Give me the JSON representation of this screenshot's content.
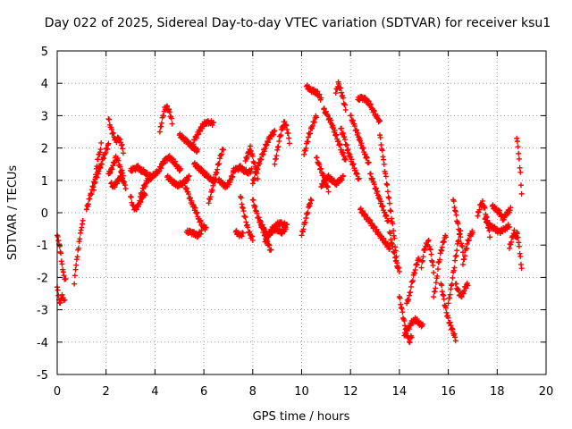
{
  "chart_data": {
    "type": "scatter",
    "title": "Day 022 of 2025, Sidereal Day-to-day VTEC variation (SDTVAR) for receiver ksu1",
    "xlabel": "GPS time / hours",
    "ylabel": "SDTVAR / TECUs",
    "xlim": [
      0,
      20
    ],
    "ylim": [
      -5,
      5
    ],
    "xticks": [
      0,
      2,
      4,
      6,
      8,
      10,
      12,
      14,
      16,
      18,
      20
    ],
    "yticks": [
      -5,
      -4,
      -3,
      -2,
      -1,
      0,
      1,
      2,
      3,
      4,
      5
    ],
    "grid": true,
    "marker": "+",
    "color": "#ff0000",
    "series": [
      {
        "name": "tr01",
        "x": [
          0.0,
          0.05,
          0.1,
          0.15,
          0.2,
          0.25,
          0.3
        ],
        "y": [
          -2.3,
          -2.6,
          -2.85,
          -2.7,
          -2.55,
          -2.6,
          -2.75
        ]
      },
      {
        "name": "tr02",
        "x": [
          0.0,
          0.05,
          0.1,
          0.15,
          0.2,
          0.25,
          0.3,
          0.35
        ],
        "y": [
          -0.7,
          -0.9,
          -1.1,
          -1.3,
          -1.6,
          -1.8,
          -2.0,
          -2.1
        ]
      },
      {
        "name": "tr03",
        "x": [
          0.7,
          0.75,
          0.8,
          0.85,
          0.9,
          0.95,
          1.0,
          1.05
        ],
        "y": [
          -2.2,
          -1.8,
          -1.5,
          -1.2,
          -0.9,
          -0.6,
          -0.4,
          -0.3
        ]
      },
      {
        "name": "tr04",
        "x": [
          1.2,
          1.35,
          1.5,
          1.65,
          1.8,
          1.95,
          2.1
        ],
        "y": [
          0.1,
          0.5,
          0.9,
          1.2,
          1.5,
          1.85,
          2.1
        ]
      },
      {
        "name": "tr05",
        "x": [
          1.5,
          1.55,
          1.6,
          1.65,
          1.7,
          1.75,
          1.8
        ],
        "y": [
          0.7,
          1.0,
          1.3,
          1.6,
          1.8,
          1.9,
          2.1
        ]
      },
      {
        "name": "tr06",
        "x": [
          2.1,
          2.2,
          2.3,
          2.4,
          2.5,
          2.6,
          2.7
        ],
        "y": [
          2.9,
          2.6,
          2.4,
          2.2,
          2.3,
          2.2,
          1.9
        ]
      },
      {
        "name": "tr07",
        "x": [
          2.1,
          2.2,
          2.3,
          2.4,
          2.5,
          2.6,
          2.7
        ],
        "y": [
          1.2,
          1.3,
          1.5,
          1.7,
          1.6,
          1.3,
          1.2
        ]
      },
      {
        "name": "tr08",
        "x": [
          2.2,
          2.3,
          2.4,
          2.5,
          2.6,
          2.7,
          2.8
        ],
        "y": [
          0.9,
          0.8,
          0.9,
          1.0,
          1.1,
          1.0,
          0.8
        ]
      },
      {
        "name": "tr09",
        "x": [
          3.0,
          3.1,
          3.2,
          3.3,
          3.4,
          3.5,
          3.6
        ],
        "y": [
          0.5,
          0.2,
          0.1,
          0.2,
          0.35,
          0.5,
          0.6
        ]
      },
      {
        "name": "tr10",
        "x": [
          3.0,
          3.15,
          3.3,
          3.45,
          3.6,
          3.75,
          3.9
        ],
        "y": [
          1.3,
          1.35,
          1.4,
          1.3,
          1.25,
          1.15,
          1.1
        ]
      },
      {
        "name": "tr11",
        "x": [
          3.4,
          3.55,
          3.7,
          3.85,
          4.0,
          4.15,
          4.3
        ],
        "y": [
          0.5,
          0.8,
          1.0,
          1.1,
          1.2,
          1.3,
          1.5
        ]
      },
      {
        "name": "tr12",
        "x": [
          4.2,
          4.3,
          4.4,
          4.5,
          4.6,
          4.7
        ],
        "y": [
          2.5,
          2.9,
          3.2,
          3.25,
          3.1,
          2.8
        ]
      },
      {
        "name": "tr13",
        "x": [
          4.3,
          4.45,
          4.6,
          4.75,
          4.9,
          5.05
        ],
        "y": [
          1.5,
          1.65,
          1.7,
          1.6,
          1.45,
          1.3
        ]
      },
      {
        "name": "tr14",
        "x": [
          4.5,
          4.65,
          4.8,
          4.95,
          5.1,
          5.25,
          5.4
        ],
        "y": [
          1.1,
          1.0,
          0.9,
          0.85,
          0.9,
          1.0,
          1.1
        ]
      },
      {
        "name": "tr15",
        "x": [
          5.0,
          5.15,
          5.3,
          5.45,
          5.6,
          5.75
        ],
        "y": [
          2.4,
          2.3,
          2.2,
          2.1,
          2.0,
          1.9
        ]
      },
      {
        "name": "tr16",
        "x": [
          5.2,
          5.35,
          5.5,
          5.65,
          5.8,
          5.95,
          6.1
        ],
        "y": [
          0.9,
          0.6,
          0.3,
          0.1,
          -0.2,
          -0.4,
          -0.5
        ]
      },
      {
        "name": "tr17",
        "x": [
          5.3,
          5.45,
          5.6,
          5.75,
          5.9
        ],
        "y": [
          -0.6,
          -0.6,
          -0.65,
          -0.7,
          -0.6
        ]
      },
      {
        "name": "tr18",
        "x": [
          5.5,
          5.65,
          5.8,
          5.95,
          6.1,
          6.25,
          6.4
        ],
        "y": [
          2.0,
          2.3,
          2.5,
          2.7,
          2.8,
          2.8,
          2.75
        ]
      },
      {
        "name": "tr19",
        "x": [
          5.6,
          5.75,
          5.9,
          6.05,
          6.2,
          6.35,
          6.5
        ],
        "y": [
          1.5,
          1.4,
          1.3,
          1.2,
          1.1,
          1.0,
          1.0
        ]
      },
      {
        "name": "tr20",
        "x": [
          6.2,
          6.3,
          6.4,
          6.5,
          6.6,
          6.7,
          6.8
        ],
        "y": [
          0.3,
          0.6,
          0.9,
          1.2,
          1.5,
          1.8,
          2.0
        ]
      },
      {
        "name": "tr21",
        "x": [
          6.6,
          6.75,
          6.9,
          7.05,
          7.2
        ],
        "y": [
          1.0,
          0.9,
          0.8,
          0.95,
          1.2
        ]
      },
      {
        "name": "tr22",
        "x": [
          7.2,
          7.35,
          7.5,
          7.65,
          7.8,
          7.95
        ],
        "y": [
          1.3,
          1.35,
          1.4,
          1.3,
          1.25,
          1.3
        ]
      },
      {
        "name": "tr23",
        "x": [
          7.3,
          7.4,
          7.5,
          7.6
        ],
        "y": [
          -0.6,
          -0.65,
          -0.7,
          -0.65
        ]
      },
      {
        "name": "tr24",
        "x": [
          7.5,
          7.6,
          7.7,
          7.8,
          7.9,
          8.0
        ],
        "y": [
          0.5,
          0.1,
          -0.2,
          -0.5,
          -0.7,
          -0.8
        ]
      },
      {
        "name": "tr25",
        "x": [
          7.7,
          7.8,
          7.9,
          8.0,
          8.1,
          8.2
        ],
        "y": [
          1.6,
          1.8,
          2.0,
          1.7,
          1.4,
          1.1
        ]
      },
      {
        "name": "tr26",
        "x": [
          8.0,
          8.15,
          8.3,
          8.45,
          8.6,
          8.75
        ],
        "y": [
          0.4,
          0.0,
          -0.3,
          -0.6,
          -0.9,
          -1.2
        ]
      },
      {
        "name": "tr27",
        "x": [
          8.0,
          8.15,
          8.3,
          8.45,
          8.6,
          8.75,
          8.9
        ],
        "y": [
          0.9,
          1.3,
          1.6,
          1.9,
          2.2,
          2.4,
          2.5
        ]
      },
      {
        "name": "tr28",
        "x": [
          8.3,
          8.45,
          8.6,
          8.75,
          8.9,
          9.05,
          9.2,
          9.35
        ],
        "y": [
          -0.3,
          -0.5,
          -0.7,
          -0.6,
          -0.5,
          -0.55,
          -0.6,
          -0.5
        ]
      },
      {
        "name": "tr29",
        "x": [
          8.5,
          8.65,
          8.8,
          8.95,
          9.1,
          9.25,
          9.4
        ],
        "y": [
          -0.9,
          -0.7,
          -0.5,
          -0.4,
          -0.3,
          -0.35,
          -0.4
        ]
      },
      {
        "name": "tr30",
        "x": [
          8.9,
          9.0,
          9.1,
          9.2,
          9.3,
          9.4,
          9.5
        ],
        "y": [
          1.5,
          1.9,
          2.3,
          2.6,
          2.8,
          2.6,
          2.2
        ]
      },
      {
        "name": "tr31",
        "x": [
          10.0,
          10.1,
          10.2,
          10.3,
          10.4
        ],
        "y": [
          -0.7,
          -0.4,
          -0.1,
          0.2,
          0.4
        ]
      },
      {
        "name": "tr32",
        "x": [
          10.1,
          10.2,
          10.3,
          10.4,
          10.5,
          10.6
        ],
        "y": [
          1.8,
          2.1,
          2.4,
          2.6,
          2.8,
          3.0
        ]
      },
      {
        "name": "tr33",
        "x": [
          10.2,
          10.35,
          10.5,
          10.65,
          10.8
        ],
        "y": [
          3.9,
          3.8,
          3.75,
          3.7,
          3.5
        ]
      },
      {
        "name": "tr34",
        "x": [
          10.6,
          10.7,
          10.8,
          10.9,
          11.0,
          11.1
        ],
        "y": [
          1.7,
          1.5,
          1.3,
          1.1,
          0.9,
          0.7
        ]
      },
      {
        "name": "tr35",
        "x": [
          10.9,
          11.05,
          11.2,
          11.35,
          11.5,
          11.65,
          11.8
        ],
        "y": [
          3.2,
          3.0,
          2.8,
          2.5,
          2.2,
          1.9,
          1.6
        ]
      },
      {
        "name": "tr36",
        "x": [
          10.8,
          10.95,
          11.1,
          11.25,
          11.4,
          11.55,
          11.7
        ],
        "y": [
          0.8,
          1.0,
          1.1,
          1.0,
          0.9,
          1.0,
          1.1
        ]
      },
      {
        "name": "tr37",
        "x": [
          11.4,
          11.5,
          11.6,
          11.7,
          11.8
        ],
        "y": [
          3.7,
          4.0,
          3.8,
          3.5,
          3.2
        ]
      },
      {
        "name": "tr38",
        "x": [
          11.6,
          11.75,
          11.9,
          12.05,
          12.2,
          12.35
        ],
        "y": [
          2.6,
          2.3,
          1.9,
          1.6,
          1.3,
          1.0
        ]
      },
      {
        "name": "tr39",
        "x": [
          12.0,
          12.15,
          12.3,
          12.45,
          12.6,
          12.75
        ],
        "y": [
          3.0,
          2.7,
          2.4,
          2.1,
          1.8,
          1.5
        ]
      },
      {
        "name": "tr40",
        "x": [
          12.3,
          12.45,
          12.6,
          12.75,
          12.9,
          13.05,
          13.2
        ],
        "y": [
          3.5,
          3.55,
          3.5,
          3.4,
          3.2,
          3.0,
          2.8
        ]
      },
      {
        "name": "tr41",
        "x": [
          12.4,
          12.6,
          12.8,
          13.0,
          13.2,
          13.4,
          13.6
        ],
        "y": [
          0.1,
          -0.1,
          -0.3,
          -0.5,
          -0.7,
          -0.9,
          -1.1
        ]
      },
      {
        "name": "tr42",
        "x": [
          12.8,
          12.95,
          13.1,
          13.25,
          13.4,
          13.55
        ],
        "y": [
          1.2,
          0.9,
          0.6,
          0.3,
          0.0,
          -0.3
        ]
      },
      {
        "name": "tr43",
        "x": [
          13.2,
          13.35,
          13.5,
          13.65,
          13.8,
          13.9
        ],
        "y": [
          2.4,
          1.6,
          0.8,
          0.0,
          -0.8,
          -1.6
        ]
      },
      {
        "name": "tr44",
        "x": [
          13.6,
          13.7,
          13.8,
          13.9,
          14.0
        ],
        "y": [
          -0.6,
          -1.0,
          -1.3,
          -1.6,
          -1.8
        ]
      },
      {
        "name": "tr45",
        "x": [
          14.0,
          14.1,
          14.2,
          14.3,
          14.4,
          14.5
        ],
        "y": [
          -2.6,
          -3.0,
          -3.4,
          -3.7,
          -4.0,
          -3.8
        ]
      },
      {
        "name": "tr46",
        "x": [
          14.2,
          14.35,
          14.5,
          14.65,
          14.8,
          14.95
        ],
        "y": [
          -3.8,
          -3.6,
          -3.4,
          -3.3,
          -3.4,
          -3.5
        ]
      },
      {
        "name": "tr47",
        "x": [
          14.3,
          14.4,
          14.5,
          14.6,
          14.7,
          14.8
        ],
        "y": [
          -2.8,
          -2.6,
          -2.2,
          -1.9,
          -1.6,
          -1.4
        ]
      },
      {
        "name": "tr48",
        "x": [
          14.9,
          15.0,
          15.1,
          15.2,
          15.3,
          15.4
        ],
        "y": [
          -1.7,
          -1.2,
          -1.0,
          -0.9,
          -1.3,
          -1.8
        ]
      },
      {
        "name": "tr49",
        "x": [
          15.4,
          15.5,
          15.6,
          15.7,
          15.8,
          15.9
        ],
        "y": [
          -2.6,
          -2.2,
          -1.6,
          -1.2,
          -0.9,
          -0.7
        ]
      },
      {
        "name": "tr50",
        "x": [
          15.7,
          15.8,
          15.9,
          16.0,
          16.1,
          16.2,
          16.3
        ],
        "y": [
          -2.2,
          -2.6,
          -3.0,
          -3.3,
          -3.5,
          -3.7,
          -3.9
        ]
      },
      {
        "name": "tr51",
        "x": [
          16.0,
          16.1,
          16.2,
          16.3,
          16.4,
          16.5
        ],
        "y": [
          -2.8,
          -2.4,
          -1.9,
          -1.4,
          -0.9,
          -0.5
        ]
      },
      {
        "name": "tr52",
        "x": [
          16.3,
          16.4,
          16.5,
          16.6,
          16.7,
          16.8
        ],
        "y": [
          -2.2,
          -2.4,
          -2.6,
          -2.5,
          -2.3,
          -2.2
        ]
      },
      {
        "name": "tr53",
        "x": [
          16.2,
          16.3,
          16.4,
          16.5,
          16.6
        ],
        "y": [
          0.4,
          0.0,
          -0.4,
          -0.8,
          -1.2
        ]
      },
      {
        "name": "tr54",
        "x": [
          16.6,
          16.7,
          16.8,
          16.9,
          17.0
        ],
        "y": [
          -1.6,
          -1.2,
          -0.9,
          -0.7,
          -0.6
        ]
      },
      {
        "name": "tr55",
        "x": [
          17.2,
          17.3,
          17.4,
          17.5,
          17.6,
          17.7
        ],
        "y": [
          -0.1,
          0.2,
          0.3,
          0.1,
          -0.3,
          -0.7
        ]
      },
      {
        "name": "tr56",
        "x": [
          17.5,
          17.7,
          17.9,
          18.1,
          18.3,
          18.5
        ],
        "y": [
          -0.2,
          -0.4,
          -0.5,
          -0.6,
          -0.5,
          -0.4
        ]
      },
      {
        "name": "tr57",
        "x": [
          17.8,
          17.95,
          18.1,
          18.25,
          18.4,
          18.55
        ],
        "y": [
          0.2,
          0.1,
          0.0,
          -0.2,
          0.0,
          0.1
        ]
      },
      {
        "name": "tr58",
        "x": [
          18.5,
          18.6,
          18.7,
          18.8
        ],
        "y": [
          -1.1,
          -0.8,
          -0.6,
          -0.8
        ]
      },
      {
        "name": "tr59",
        "x": [
          18.8,
          18.85,
          18.9,
          18.95,
          19.0
        ],
        "y": [
          2.3,
          2.0,
          1.6,
          1.2,
          0.6
        ]
      },
      {
        "name": "tr60",
        "x": [
          18.8,
          18.85,
          18.9,
          18.95,
          19.0
        ],
        "y": [
          -0.6,
          -0.8,
          -1.1,
          -1.4,
          -1.7
        ]
      }
    ]
  }
}
